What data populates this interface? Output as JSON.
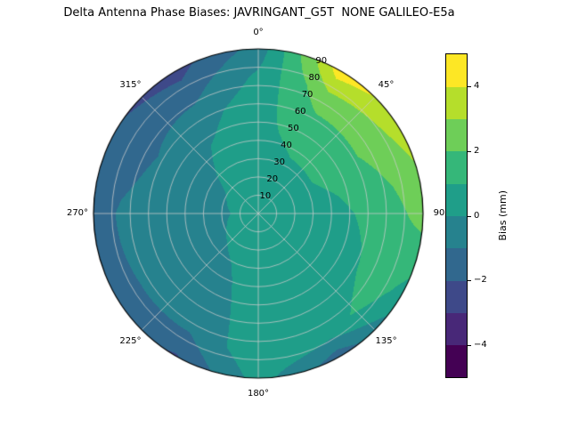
{
  "chart_data": {
    "type": "heatmap",
    "subtype": "polar_filled_contour_skyplot",
    "title": "Delta Antenna Phase Biases: JAVRINGANT_G5T  NONE GALILEO-E5a",
    "colorbar_label": "Bias (mm)",
    "colormap": "viridis",
    "colormap_colors": [
      "#440154",
      "#482878",
      "#3e4989",
      "#31688e",
      "#26828e",
      "#1f9e89",
      "#35b779",
      "#6ece58",
      "#b5de2b",
      "#fde725"
    ],
    "value_range": [
      -5,
      5
    ],
    "contour_level_step": 1,
    "colorbar_ticks": [
      {
        "value": 4,
        "label": "4"
      },
      {
        "value": 2,
        "label": "2"
      },
      {
        "value": 0,
        "label": "0"
      },
      {
        "value": -2,
        "label": "−2"
      },
      {
        "value": -4,
        "label": "−4"
      }
    ],
    "theta_tick_labels": [
      "0°",
      "45°",
      "90",
      "135°",
      "180°",
      "225°",
      "270°",
      "315°"
    ],
    "theta_tick_angles_deg": [
      0,
      45,
      90,
      135,
      180,
      225,
      270,
      315
    ],
    "r_tick_labels": [
      "10",
      "20",
      "30",
      "40",
      "50",
      "60",
      "70",
      "80",
      "90"
    ],
    "r_label_angle_deg": 22.5,
    "r_max": 90,
    "grid_color": "#cccccc",
    "azimuth_deg": [
      0,
      30,
      60,
      90,
      120,
      150,
      180,
      210,
      240,
      270,
      300,
      330
    ],
    "zenith_deg": [
      0,
      15,
      30,
      45,
      60,
      75,
      90
    ],
    "bias_mm": [
      [
        0.3,
        0.5,
        0.7,
        0.8,
        0.6,
        0.2,
        -0.6
      ],
      [
        0.3,
        0.6,
        0.9,
        1.2,
        1.8,
        2.8,
        4.6
      ],
      [
        0.3,
        0.6,
        0.9,
        1.3,
        1.9,
        2.5,
        3.4
      ],
      [
        0.3,
        0.5,
        0.6,
        0.8,
        1.2,
        1.7,
        2.4
      ],
      [
        0.3,
        0.4,
        0.4,
        0.5,
        0.9,
        1.6,
        0.6
      ],
      [
        0.3,
        0.3,
        0.2,
        0.2,
        0.4,
        0.6,
        -1.6
      ],
      [
        0.3,
        0.4,
        0.4,
        0.5,
        0.6,
        0.8,
        0.4
      ],
      [
        0.3,
        0.2,
        0.0,
        -0.3,
        -0.6,
        -1.0,
        -2.1
      ],
      [
        0.3,
        0.1,
        -0.2,
        -0.4,
        -0.7,
        -1.0,
        -1.5
      ],
      [
        0.3,
        0.0,
        -0.3,
        -0.5,
        -0.7,
        -0.9,
        -1.4
      ],
      [
        0.3,
        0.1,
        -0.2,
        -0.5,
        -0.9,
        -1.4,
        -1.9
      ],
      [
        0.3,
        0.3,
        0.3,
        0.1,
        -0.4,
        -1.4,
        -2.4
      ]
    ]
  }
}
